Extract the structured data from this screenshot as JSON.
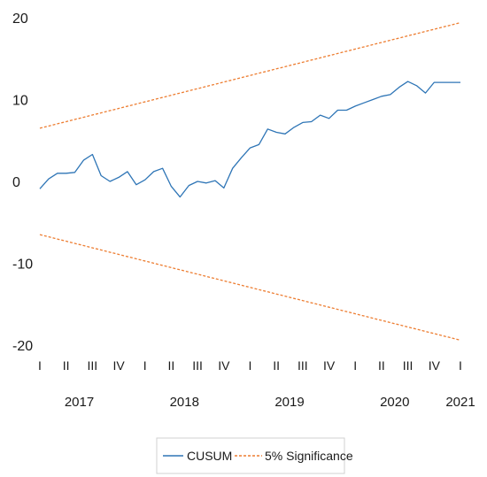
{
  "chart_data": {
    "type": "line",
    "title": "",
    "xlabel": "",
    "ylabel": "",
    "ylim": [
      -20,
      20
    ],
    "y_ticks": [
      "20",
      "10",
      "0",
      "-10",
      "-20"
    ],
    "x_range": [
      2017.0,
      2021.0
    ],
    "quarter_labels": [
      "I",
      "II",
      "III",
      "IV",
      "I",
      "II",
      "III",
      "IV",
      "I",
      "II",
      "III",
      "IV",
      "I",
      "II",
      "III",
      "IV",
      "I"
    ],
    "year_labels": [
      {
        "label": "2017",
        "year": 2017.375
      },
      {
        "label": "2018",
        "year": 2018.375
      },
      {
        "label": "2019",
        "year": 2019.375
      },
      {
        "label": "2020",
        "year": 2020.375
      },
      {
        "label": "2021",
        "year": 2021.0
      }
    ],
    "grid": false,
    "legend_position": "bottom",
    "series": [
      {
        "name": "CUSUM",
        "color": "#2e75b6",
        "style": "solid",
        "x": [
          2017.0,
          2017.083,
          2017.167,
          2017.25,
          2017.333,
          2017.417,
          2017.5,
          2017.583,
          2017.667,
          2017.75,
          2017.833,
          2017.917,
          2018.0,
          2018.083,
          2018.167,
          2018.25,
          2018.333,
          2018.417,
          2018.5,
          2018.583,
          2018.667,
          2018.75,
          2018.833,
          2018.917,
          2019.0,
          2019.083,
          2019.167,
          2019.25,
          2019.333,
          2019.417,
          2019.5,
          2019.583,
          2019.667,
          2019.75,
          2019.833,
          2019.917,
          2020.0,
          2020.083,
          2020.167,
          2020.25,
          2020.333,
          2020.417,
          2020.5,
          2020.583,
          2020.667,
          2020.75,
          2020.833,
          2020.917,
          2021.0
        ],
        "values": [
          -0.9,
          0.3,
          1.0,
          1.0,
          1.1,
          2.6,
          3.3,
          0.7,
          0.0,
          0.5,
          1.2,
          -0.4,
          0.2,
          1.2,
          1.6,
          -0.6,
          -1.9,
          -0.5,
          0.0,
          -0.2,
          0.1,
          -0.8,
          1.6,
          2.9,
          4.1,
          4.5,
          6.4,
          6.0,
          5.8,
          6.6,
          7.2,
          7.3,
          8.1,
          7.7,
          8.7,
          8.7,
          9.2,
          9.6,
          10.0,
          10.4,
          10.6,
          11.5,
          12.2,
          11.7,
          10.8,
          12.1,
          12.1,
          12.1,
          12.1
        ]
      },
      {
        "name": "5% Significance",
        "color": "#ed7d31",
        "style": "dashed",
        "x": [
          2017.0,
          2021.0
        ],
        "values": [
          6.5,
          19.4
        ]
      },
      {
        "name": "",
        "color": "#ed7d31",
        "style": "dashed",
        "x": [
          2017.0,
          2021.0
        ],
        "values": [
          -6.5,
          -19.4
        ]
      }
    ]
  }
}
